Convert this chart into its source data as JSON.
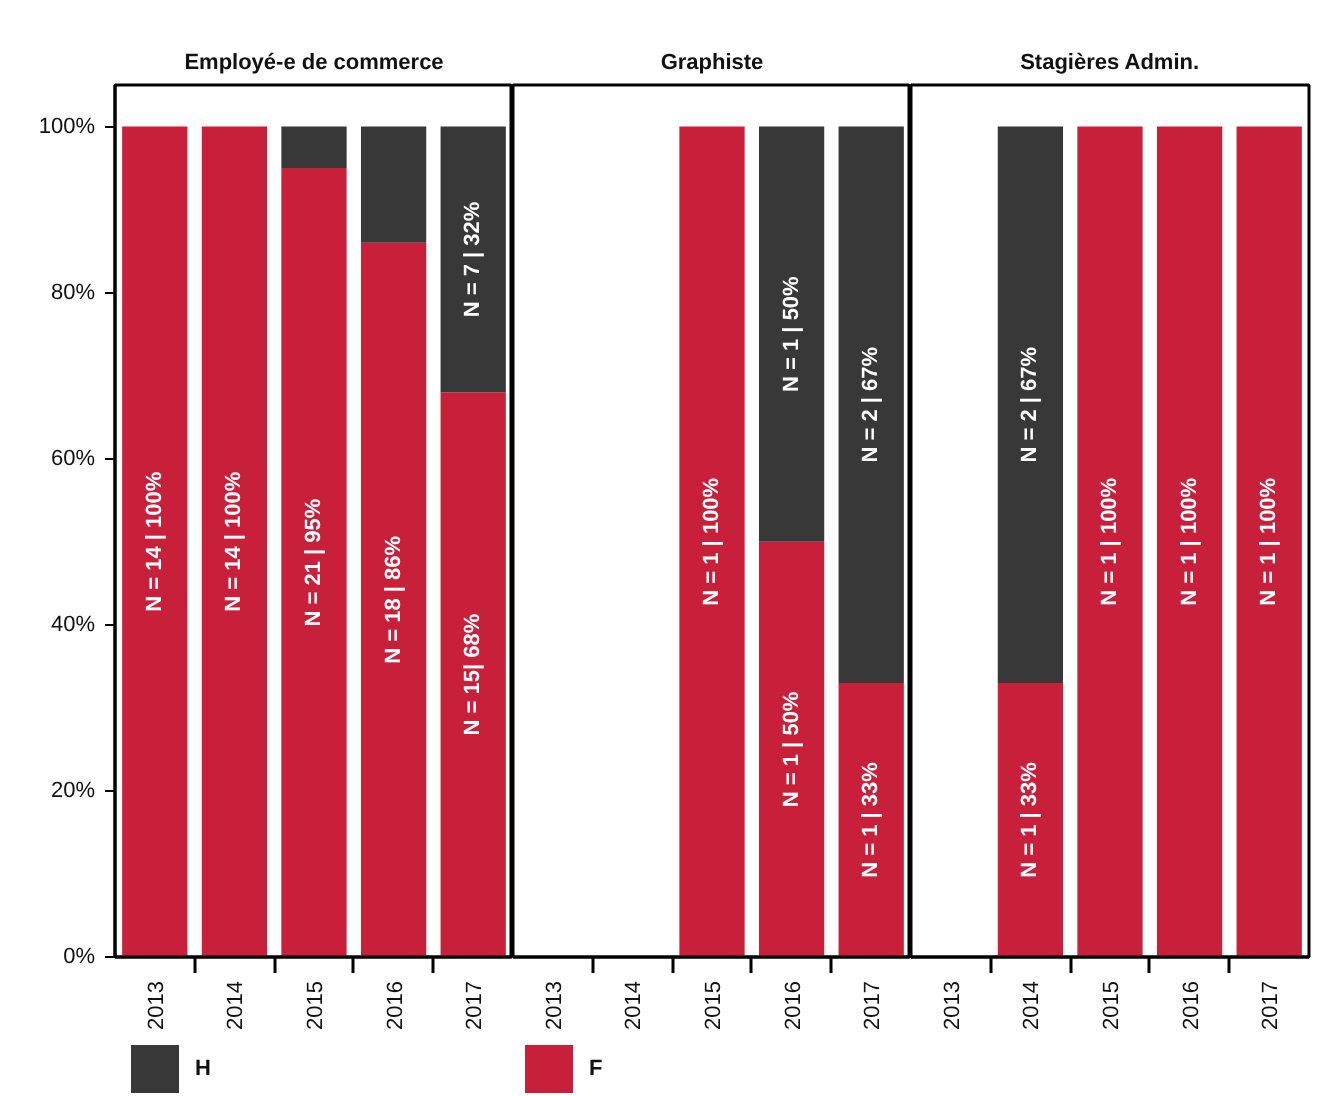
{
  "chart_data": [
    {
      "type": "bar",
      "title": "Employé-e de commerce",
      "categories": [
        "2013",
        "2014",
        "2015",
        "2016",
        "2017"
      ],
      "stacked": true,
      "ylim": [
        0,
        105
      ],
      "yticks": [
        {
          "value": 0,
          "label": "0%"
        },
        {
          "value": 20,
          "label": "20%"
        },
        {
          "value": 40,
          "label": "40%"
        },
        {
          "value": 60,
          "label": "60%"
        },
        {
          "value": 80,
          "label": "80%"
        },
        {
          "value": 100,
          "label": "100%"
        }
      ],
      "legend": "bottom",
      "series": [
        {
          "name": "F",
          "color": "#c8203a",
          "values": [
            100,
            100,
            95,
            86,
            68
          ],
          "value_labels": [
            "N = 14 | 100%",
            "N = 14 | 100%",
            "N = 21 | 95%",
            "N = 18 | 86%",
            "N = 15| 68%"
          ]
        },
        {
          "name": "H",
          "color": "#383838",
          "values": [
            0,
            0,
            5,
            14,
            32
          ],
          "value_labels": [
            null,
            null,
            null,
            null,
            "N = 7 | 32%"
          ]
        }
      ]
    },
    {
      "type": "bar",
      "title": "Graphiste",
      "categories": [
        "2013",
        "2014",
        "2015",
        "2016",
        "2017"
      ],
      "stacked": true,
      "ylim": [
        0,
        105
      ],
      "tick_labels": "x",
      "series": [
        {
          "color": "#c8203a",
          "values": [
            null,
            null,
            100,
            50,
            33
          ],
          "value_labels": [
            null,
            null,
            "N = 1 | 100%",
            "N = 1 | 50%",
            "N = 1 | 33%"
          ]
        },
        {
          "color": "#383838",
          "values": [
            null,
            null,
            0,
            50,
            67
          ],
          "value_labels": [
            null,
            null,
            null,
            "N = 1 | 50%",
            "N = 2 | 67%"
          ]
        }
      ]
    },
    {
      "type": "bar",
      "title": "Stagières Admin.",
      "categories": [
        "2013",
        "2014",
        "2015",
        "2016",
        "2017"
      ],
      "stacked": true,
      "ylim": [
        0,
        105
      ],
      "tick_labels": "x",
      "series": [
        {
          "color": "#c8203a",
          "values": [
            null,
            33,
            100,
            100,
            100
          ],
          "value_labels": [
            null,
            "N = 1 | 33%",
            "N = 1 | 100%",
            "N = 1 | 100%",
            "N = 1 | 100%"
          ]
        },
        {
          "color": "#383838",
          "values": [
            null,
            67,
            0,
            0,
            0
          ],
          "value_labels": [
            null,
            "N = 2 | 67%",
            null,
            null,
            null
          ]
        }
      ]
    }
  ]
}
